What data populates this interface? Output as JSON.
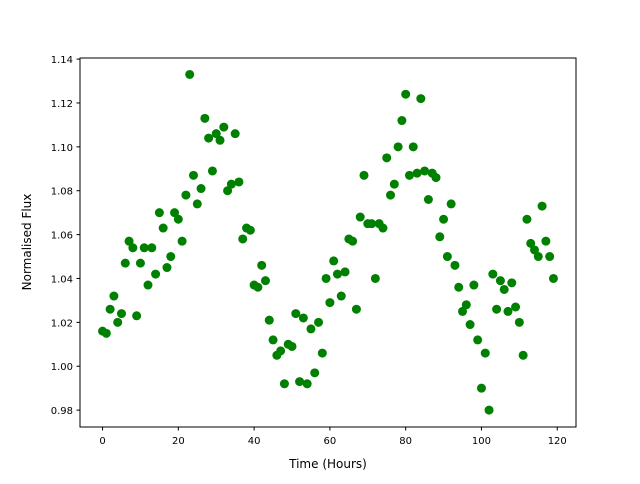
{
  "chart_data": {
    "type": "scatter",
    "title": "",
    "xlabel": "Time (Hours)",
    "ylabel": "Normalised Flux",
    "xlim": [
      -5.95,
      124.95
    ],
    "ylim": [
      0.9723,
      1.1405
    ],
    "xticks": [
      0,
      20,
      40,
      60,
      80,
      100,
      120
    ],
    "xtick_labels": [
      "0",
      "20",
      "40",
      "60",
      "80",
      "100",
      "120"
    ],
    "yticks": [
      0.98,
      1.0,
      1.02,
      1.04,
      1.06,
      1.08,
      1.1,
      1.12,
      1.14
    ],
    "ytick_labels": [
      "0.98",
      "1.00",
      "1.02",
      "1.04",
      "1.06",
      "1.08",
      "1.10",
      "1.12",
      "1.14"
    ],
    "grid": false,
    "marker_color": "#008000",
    "x": [
      0,
      1,
      2,
      3,
      4,
      5,
      6,
      7,
      8,
      9,
      10,
      11,
      12,
      13,
      14,
      15,
      16,
      17,
      18,
      19,
      20,
      21,
      22,
      23,
      24,
      25,
      26,
      27,
      28,
      29,
      30,
      31,
      32,
      33,
      34,
      35,
      36,
      37,
      38,
      39,
      40,
      41,
      42,
      43,
      44,
      45,
      46,
      47,
      48,
      49,
      50,
      51,
      52,
      53,
      54,
      55,
      56,
      57,
      58,
      59,
      60,
      61,
      62,
      63,
      64,
      65,
      66,
      67,
      68,
      69,
      70,
      71,
      72,
      73,
      74,
      75,
      76,
      77,
      78,
      79,
      80,
      81,
      82,
      83,
      84,
      85,
      86,
      87,
      88,
      89,
      90,
      91,
      92,
      93,
      94,
      95,
      96,
      97,
      98,
      99,
      100,
      101,
      102,
      103,
      104,
      105,
      106,
      107,
      108,
      109,
      110,
      111,
      112,
      113,
      114,
      115,
      116,
      117,
      118,
      119
    ],
    "y": [
      1.016,
      1.015,
      1.026,
      1.032,
      1.02,
      1.024,
      1.047,
      1.057,
      1.054,
      1.023,
      1.047,
      1.054,
      1.037,
      1.054,
      1.042,
      1.07,
      1.063,
      1.045,
      1.05,
      1.07,
      1.067,
      1.057,
      1.078,
      1.133,
      1.087,
      1.074,
      1.081,
      1.113,
      1.104,
      1.089,
      1.106,
      1.103,
      1.109,
      1.08,
      1.083,
      1.106,
      1.084,
      1.058,
      1.063,
      1.062,
      1.037,
      1.036,
      1.046,
      1.039,
      1.021,
      1.012,
      1.005,
      1.007,
      0.992,
      1.01,
      1.009,
      1.024,
      0.993,
      1.022,
      0.992,
      1.017,
      0.997,
      1.02,
      1.006,
      1.04,
      1.029,
      1.048,
      1.042,
      1.032,
      1.043,
      1.058,
      1.057,
      1.026,
      1.068,
      1.087,
      1.065,
      1.065,
      1.04,
      1.065,
      1.063,
      1.095,
      1.078,
      1.083,
      1.1,
      1.112,
      1.124,
      1.087,
      1.1,
      1.088,
      1.122,
      1.089,
      1.076,
      1.088,
      1.086,
      1.059,
      1.067,
      1.05,
      1.074,
      1.046,
      1.036,
      1.025,
      1.028,
      1.019,
      1.037,
      1.012,
      0.99,
      1.006,
      0.98,
      1.042,
      1.026,
      1.039,
      1.035,
      1.025,
      1.038,
      1.027,
      1.02,
      1.005,
      1.067,
      1.056,
      1.053,
      1.05,
      1.073,
      1.057,
      1.05,
      1.04
    ]
  }
}
